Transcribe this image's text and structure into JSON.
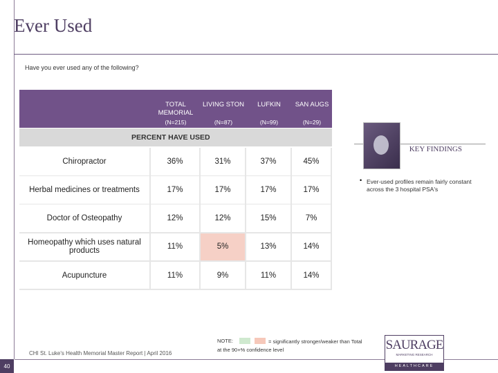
{
  "header": {
    "title": "Ever Used",
    "question": "Have you ever used any of the following?"
  },
  "table": {
    "columns": [
      {
        "name": "TOTAL MEMORIAL",
        "n": "(N=215)"
      },
      {
        "name": "LIVING STON",
        "n": "(N=87)"
      },
      {
        "name": "LUFKIN",
        "n": "(N=99)"
      },
      {
        "name": "SAN AUGS",
        "n": "(N=29)"
      }
    ],
    "section": "PERCENT HAVE USED",
    "rows": [
      {
        "label": "Chiropractor",
        "values": [
          "36%",
          "31%",
          "37%",
          "45%"
        ]
      },
      {
        "label": "Herbal medicines or treatments",
        "values": [
          "17%",
          "17%",
          "17%",
          "17%"
        ]
      },
      {
        "label": "Doctor of Osteopathy",
        "values": [
          "12%",
          "12%",
          "15%",
          "7%"
        ]
      },
      {
        "label": "Homeopathy which uses natural products",
        "values": [
          "11%",
          "5%",
          "13%",
          "14%"
        ]
      },
      {
        "label": "Acupuncture",
        "values": [
          "11%",
          "9%",
          "11%",
          "14%"
        ]
      }
    ],
    "highlight_cells": [
      [
        3,
        1
      ]
    ],
    "highlight_color": "#f6d0c6"
  },
  "key_findings": {
    "title": "KEY FINDINGS",
    "bullets": [
      "Ever-used profiles remain fairly constant across the 3 hospital PSA's"
    ]
  },
  "note": {
    "label": "NOTE:",
    "text": "= significantly stronger/weaker than Total at the 90+% confidence level",
    "stronger_color": "#cfe9cf",
    "weaker_color": "#f6c8ba"
  },
  "footer": {
    "source": "CHI St. Luke's Health Memorial Master Report | April 2016",
    "page": "40",
    "logo": "SAURAGE",
    "logo_sub": "MARKETING RESEARCH",
    "logo_tag": "HEALTHCARE"
  }
}
